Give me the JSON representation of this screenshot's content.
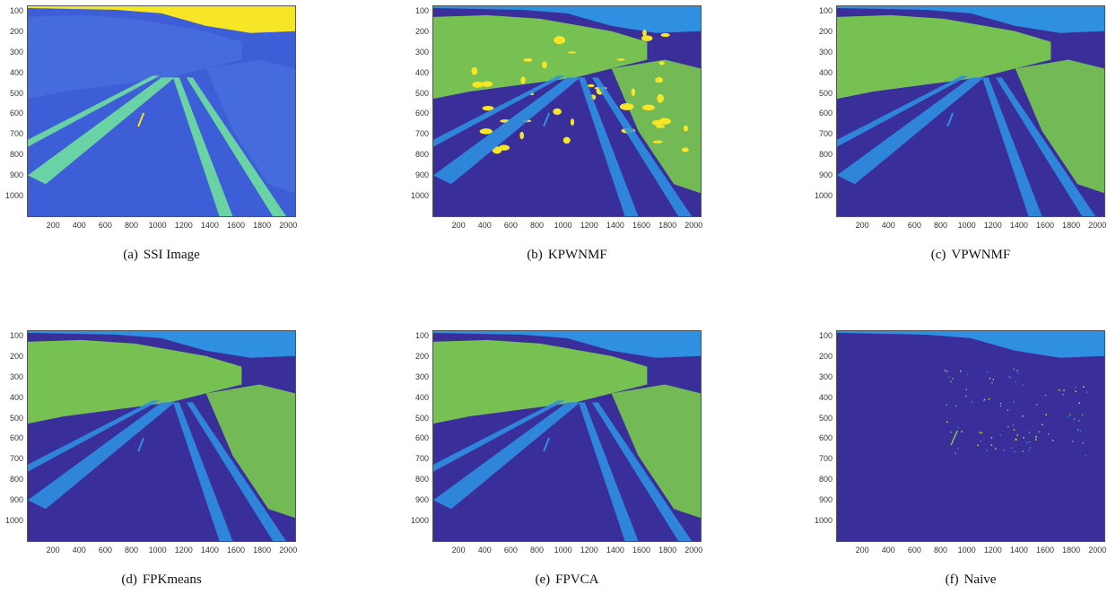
{
  "colors": {
    "dark_blue": "#3a2e9b",
    "light_blue": "#2f8fe0",
    "green": "#7ac94f",
    "yellow": "#f7e625",
    "ssi_base": "#3d5ed6"
  },
  "y_ticks": [
    "100",
    "200",
    "300",
    "400",
    "500",
    "600",
    "700",
    "800",
    "900",
    "1000"
  ],
  "x_ticks": [
    "200",
    "400",
    "600",
    "800",
    "1000",
    "1200",
    "1400",
    "1600",
    "1800",
    "2000"
  ],
  "panels": [
    {
      "letter": "(a)",
      "caption": "SSI Image",
      "style": "ssi"
    },
    {
      "letter": "(b)",
      "caption": "KPWNMF",
      "style": "kpwnmf"
    },
    {
      "letter": "(c)",
      "caption": "VPWNMF",
      "style": "vpwnmf"
    },
    {
      "letter": "(d)",
      "caption": "FPKmeans",
      "style": "fp"
    },
    {
      "letter": "(e)",
      "caption": "FPVCA",
      "style": "fp"
    },
    {
      "letter": "(f)",
      "caption": "Naive",
      "style": "naive"
    }
  ]
}
